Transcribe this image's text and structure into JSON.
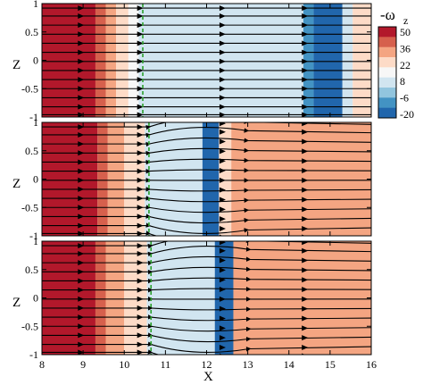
{
  "chart_data": {
    "type": "heatmap",
    "description_panels": 3,
    "x": {
      "label": "X",
      "lim": [
        8,
        16
      ],
      "ticks": [
        8,
        9,
        10,
        11,
        12,
        13,
        14,
        15,
        16
      ]
    },
    "z": {
      "label": "Z",
      "lim": [
        -1,
        1
      ],
      "ticks": [
        1,
        0.5,
        0,
        -0.5,
        -1
      ],
      "tick_labels": [
        "1",
        "0.5",
        "0",
        "-0.5",
        "-1"
      ]
    },
    "colorbar": {
      "title_main": "-ω",
      "title_sub": "z",
      "levels": [
        50,
        36,
        22,
        8,
        -6,
        -20
      ],
      "level_labels": [
        "50",
        "36",
        "22",
        "8",
        "-6",
        "-20"
      ],
      "colors": [
        "#b2182b",
        "#d6604d",
        "#f4a582",
        "#fddbc7",
        "#f7f7f7",
        "#d1e5f0",
        "#92c5de",
        "#4393c3",
        "#2166ac"
      ]
    },
    "panels": [
      {
        "bands": [
          {
            "x": [
              8,
              9.3
            ],
            "value": 50
          },
          {
            "x": [
              9.3,
              9.55
            ],
            "value": 36
          },
          {
            "x": [
              9.55,
              9.8
            ],
            "value": 22
          },
          {
            "x": [
              9.8,
              10.1
            ],
            "value": 8
          },
          {
            "x": [
              10.1,
              10.35
            ],
            "value": 0
          },
          {
            "x": [
              10.35,
              14.35
            ],
            "value": -6
          },
          {
            "x": [
              14.35,
              14.6
            ],
            "value": -12
          },
          {
            "x": [
              14.6,
              15.3
            ],
            "value": -20
          },
          {
            "x": [
              15.3,
              15.55
            ],
            "value": -6
          },
          {
            "x": [
              15.55,
              16
            ],
            "value": 8
          }
        ],
        "front_x": 10.45
      },
      {
        "bands": [
          {
            "x": [
              8,
              9.35
            ],
            "value": 50
          },
          {
            "x": [
              9.35,
              9.6
            ],
            "value": 36
          },
          {
            "x": [
              9.6,
              10.0
            ],
            "value": 22
          },
          {
            "x": [
              10.0,
              10.5
            ],
            "value": 8
          },
          {
            "x": [
              10.5,
              11.9
            ],
            "value": -6
          },
          {
            "x": [
              11.9,
              12.3
            ],
            "value": -20
          },
          {
            "x": [
              12.3,
              12.6
            ],
            "value": 8
          },
          {
            "x": [
              12.6,
              16
            ],
            "value": 30
          }
        ],
        "front_x": 10.6
      },
      {
        "bands": [
          {
            "x": [
              8,
              9.3
            ],
            "value": 50
          },
          {
            "x": [
              9.3,
              9.55
            ],
            "value": 36
          },
          {
            "x": [
              9.55,
              10.0
            ],
            "value": 22
          },
          {
            "x": [
              10.0,
              10.55
            ],
            "value": 8
          },
          {
            "x": [
              10.55,
              12.2
            ],
            "value": -6
          },
          {
            "x": [
              12.2,
              12.65
            ],
            "value": -20
          },
          {
            "x": [
              12.65,
              16
            ],
            "value": 30
          }
        ],
        "front_x": 10.65
      }
    ],
    "streamlines_z": [
      0.92,
      0.78,
      0.62,
      0.46,
      0.3,
      0.14,
      -0.02,
      -0.18,
      -0.34,
      -0.5,
      -0.66,
      -0.82,
      -0.96
    ]
  }
}
